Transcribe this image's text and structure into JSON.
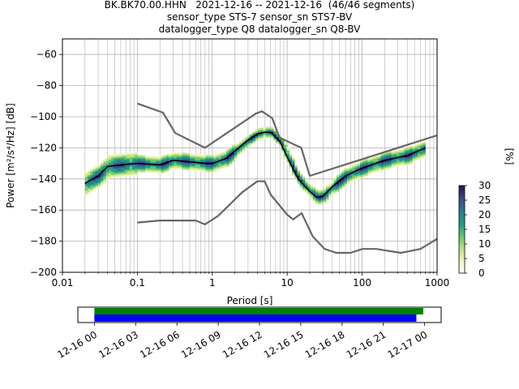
{
  "title_lines": [
    "BK.BK70.00.HHN   2021-12-16 -- 2021-12-16  (46/46 segments)",
    "sensor_type STS-7 sensor_sn STS7-BV",
    "datalogger_type Q8 datalogger_sn Q8-BV"
  ],
  "chart_data": [
    {
      "type": "heatmap",
      "title": "",
      "xlabel": "Period [s]",
      "ylabel": "Power [m²/s⁴/Hz] [dB]",
      "xscale": "log",
      "xlim": [
        0.01,
        1000
      ],
      "ylim": [
        -200,
        -50
      ],
      "x_ticks": [
        "0.01",
        "0.1",
        "1",
        "10",
        "100",
        "1000"
      ],
      "y_ticks": [
        "−200",
        "−180",
        "−160",
        "−140",
        "−120",
        "−100",
        "−80",
        "−60"
      ],
      "grid": true,
      "colorbar": {
        "label": "[%]",
        "min": 0,
        "max": 30,
        "ticks": [
          "0",
          "5",
          "10",
          "15",
          "20",
          "25",
          "30"
        ],
        "colormap": "pqlx"
      },
      "series": [
        {
          "name": "",
          "color": "#000000",
          "x": [
            0.02,
            0.025,
            0.03,
            0.04,
            0.06,
            0.1,
            0.2,
            0.3,
            0.5,
            0.8,
            1.0,
            1.5,
            2,
            3,
            4,
            5,
            6,
            8,
            10,
            14,
            20,
            25,
            30,
            40,
            60,
            100,
            200,
            400,
            700
          ],
          "y": [
            -143,
            -140,
            -138,
            -132,
            -131,
            -130,
            -131,
            -128,
            -129,
            -130,
            -130,
            -127,
            -122,
            -115,
            -111,
            -110,
            -110,
            -116,
            -126,
            -140,
            -148,
            -152,
            -151,
            -145,
            -138,
            -133,
            -128,
            -125,
            -120
          ]
        },
        {
          "name": "",
          "color": "#666666",
          "x": [
            0.1,
            0.22,
            0.32,
            0.8,
            3.8,
            4.6,
            6.3,
            7.9,
            15.4,
            20,
            1000
          ],
          "y": [
            -91.5,
            -97.4,
            -110.5,
            -120.0,
            -98.0,
            -96.5,
            -101.0,
            -113.5,
            -120.0,
            -138.0,
            -112.0
          ]
        },
        {
          "name": "",
          "color": "#666666",
          "x": [
            0.1,
            0.2,
            0.6,
            0.8,
            1.2,
            2.5,
            4.0,
            5.0,
            6.0,
            10.0,
            12.0,
            15.6,
            21.9,
            31.6,
            45.0,
            70.0,
            101.0,
            154.0,
            328.0,
            600.0,
            1000.0
          ],
          "y": [
            -168.0,
            -166.7,
            -166.7,
            -169.2,
            -163.7,
            -148.6,
            -141.5,
            -141.5,
            -150.0,
            -163.0,
            -166.0,
            -162.0,
            -177.0,
            -185.0,
            -187.5,
            -187.5,
            -185.0,
            -185.0,
            -187.5,
            -185.0,
            -178.5
          ]
        }
      ]
    },
    {
      "type": "bar",
      "title": "",
      "x_ticks": [
        "12-16 00",
        "12-16 03",
        "12-16 06",
        "12-16 09",
        "12-16 12",
        "12-16 15",
        "12-16 18",
        "12-16 21",
        "12-17 00"
      ],
      "xlim_hours": [
        -1.2,
        25.2
      ],
      "series": [
        {
          "name": "",
          "color": "#008000",
          "start_hours": 0.0,
          "end_hours": 23.9
        },
        {
          "name": "",
          "color": "#0000ff",
          "start_hours": 0.0,
          "end_hours": 23.4
        }
      ]
    }
  ]
}
